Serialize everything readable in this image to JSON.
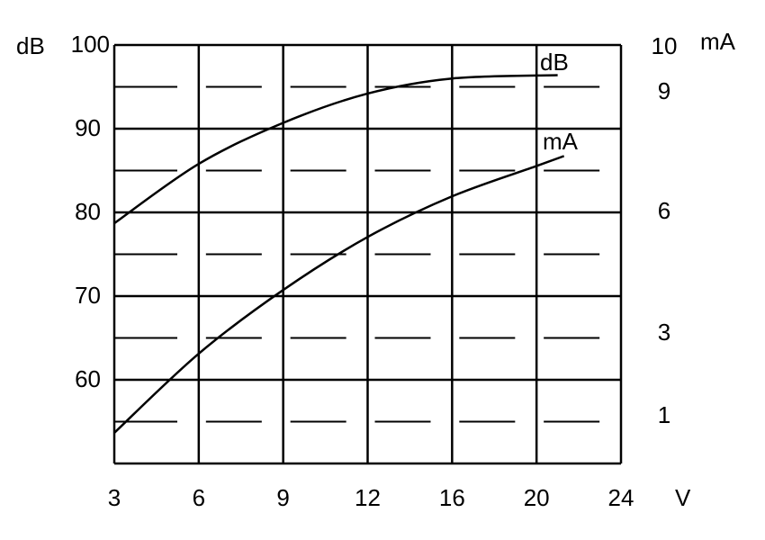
{
  "chart_data": {
    "type": "line",
    "title": "",
    "xlabel": "V",
    "ylabel_left": "dB",
    "ylabel_right": "mA",
    "x_ticks": [
      3,
      6,
      9,
      12,
      16,
      20,
      24
    ],
    "y_left_ticks": [
      60,
      70,
      80,
      90,
      100
    ],
    "y_left_range": [
      50,
      100
    ],
    "y_right_ticks": [
      1,
      3,
      6,
      9,
      10
    ],
    "grid": true,
    "series": [
      {
        "name": "dB",
        "axis": "left",
        "x": [
          3,
          6,
          9,
          12,
          16,
          21
        ],
        "y": [
          78.7,
          85.8,
          90.7,
          94.2,
          96.0,
          96.4
        ]
      },
      {
        "name": "mA",
        "axis": "right",
        "x": [
          3,
          6,
          9,
          12,
          16,
          20,
          21.3
        ],
        "y": [
          0.57,
          2.46,
          4.02,
          5.33,
          6.34,
          7.1,
          7.35
        ]
      }
    ]
  }
}
